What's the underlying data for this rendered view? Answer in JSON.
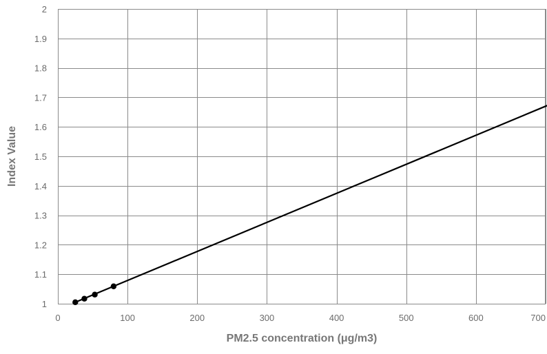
{
  "chart_data": {
    "type": "line",
    "xlabel": "PM2.5 concentration (μg/m3)",
    "ylabel": "Index Value",
    "xlim": [
      0,
      700
    ],
    "ylim": [
      1,
      2
    ],
    "x_ticks": [
      0,
      100,
      200,
      300,
      400,
      500,
      600,
      700
    ],
    "y_ticks": [
      1,
      1.1,
      1.2,
      1.3,
      1.4,
      1.5,
      1.6,
      1.7,
      1.8,
      1.9,
      2
    ],
    "x_tick_labels": [
      "0",
      "100",
      "200",
      "300",
      "400",
      "500",
      "600",
      "700"
    ],
    "y_tick_labels": [
      "1",
      "1.1",
      "1.2",
      "1.3",
      "1.4",
      "1.5",
      "1.6",
      "1.7",
      "1.8",
      "1.9",
      "2"
    ],
    "grid": true,
    "legend": "none",
    "series": [
      {
        "kind": "line",
        "x": [
          25,
          705
        ],
        "y": [
          1.005,
          1.675
        ],
        "color": "#000000"
      },
      {
        "kind": "markers",
        "x": [
          25,
          38,
          53,
          80
        ],
        "y": [
          1.005,
          1.017,
          1.031,
          1.059
        ],
        "color": "#000000"
      }
    ]
  }
}
